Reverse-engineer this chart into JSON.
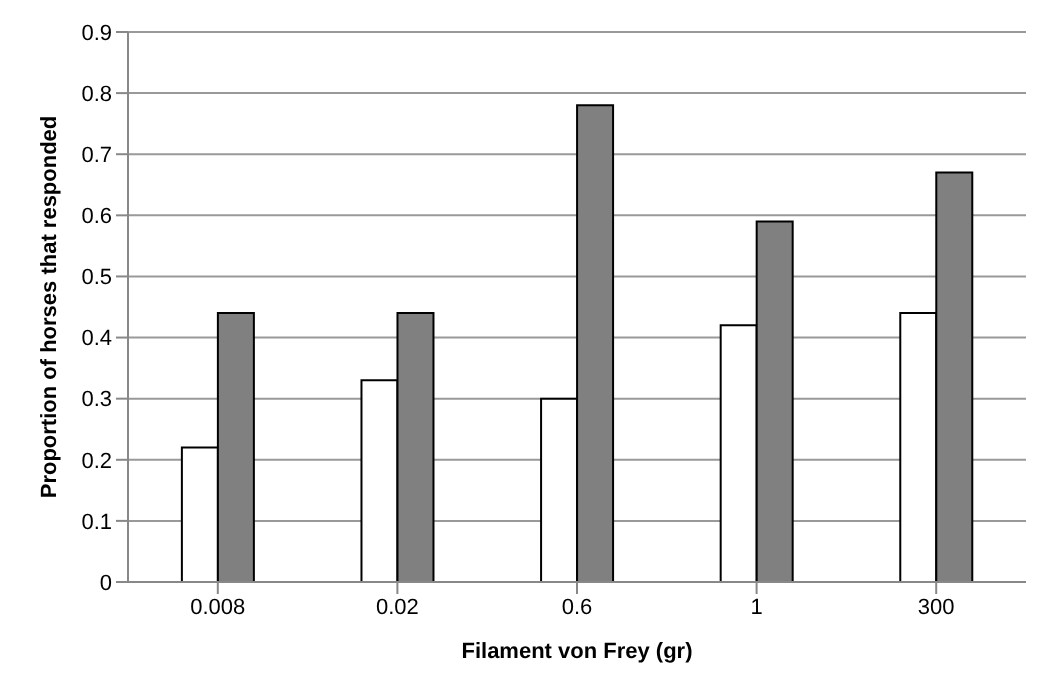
{
  "chart_data": {
    "type": "bar",
    "xlabel": "Filament von Frey (gr)",
    "ylabel": "Proportion of horses that responded",
    "categories": [
      "0.008",
      "0.02",
      "0.6",
      "1",
      "300"
    ],
    "series": [
      {
        "color": "#ffffff",
        "values": [
          0.22,
          0.33,
          0.3,
          0.42,
          0.44
        ]
      },
      {
        "color": "#808080",
        "values": [
          0.44,
          0.44,
          0.78,
          0.59,
          0.67
        ]
      }
    ],
    "ylim": [
      0,
      0.9
    ],
    "yticks": [
      0,
      0.1,
      0.2,
      0.3,
      0.4,
      0.5,
      0.6,
      0.7,
      0.8,
      0.9
    ],
    "grid": "y",
    "legend": false
  }
}
